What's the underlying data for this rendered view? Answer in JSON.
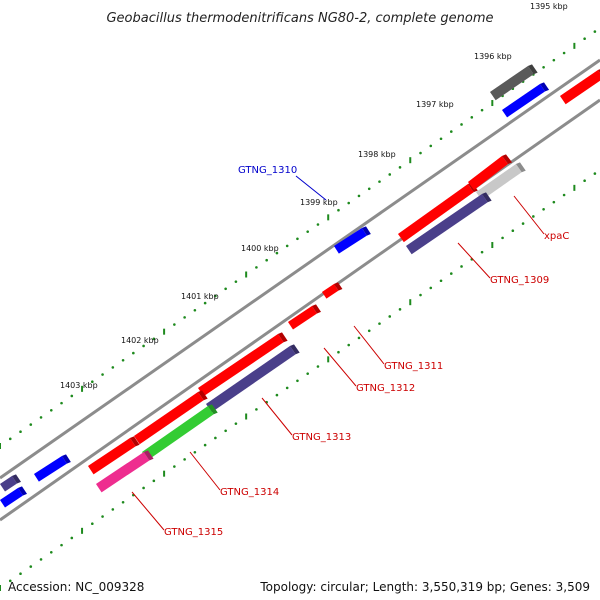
{
  "title": "Geobacillus thermodenitrificans NG80-2, complete genome",
  "accession": "Accession: NC_009328",
  "topology": "Topology: circular; Length: 3,550,319 bp; Genes: 3,509",
  "kbp_labels": [
    "1395 kbp",
    "1396 kbp",
    "1397 kbp",
    "1398 kbp",
    "1399 kbp",
    "1400 kbp",
    "1401 kbp",
    "1402 kbp",
    "1403 kbp"
  ],
  "gene_labels": [
    "GTNG_1310",
    "xpaC",
    "GTNG_1309",
    "GTNG_1311",
    "GTNG_1312",
    "GTNG_1313",
    "GTNG_1314",
    "GTNG_1315"
  ],
  "colors": {
    "red": "#ff0000",
    "blue": "#0000ff",
    "navy": "#4a3f8a",
    "green": "#33cc33",
    "pink": "#ee2d8f",
    "darkgray": "#5a5a5a",
    "lightgray": "#c8c8c8",
    "backbone": "#8c8c8c",
    "dots": "#1e8a1e",
    "label_red": "#cc0000",
    "label_blue": "#0000cc"
  }
}
